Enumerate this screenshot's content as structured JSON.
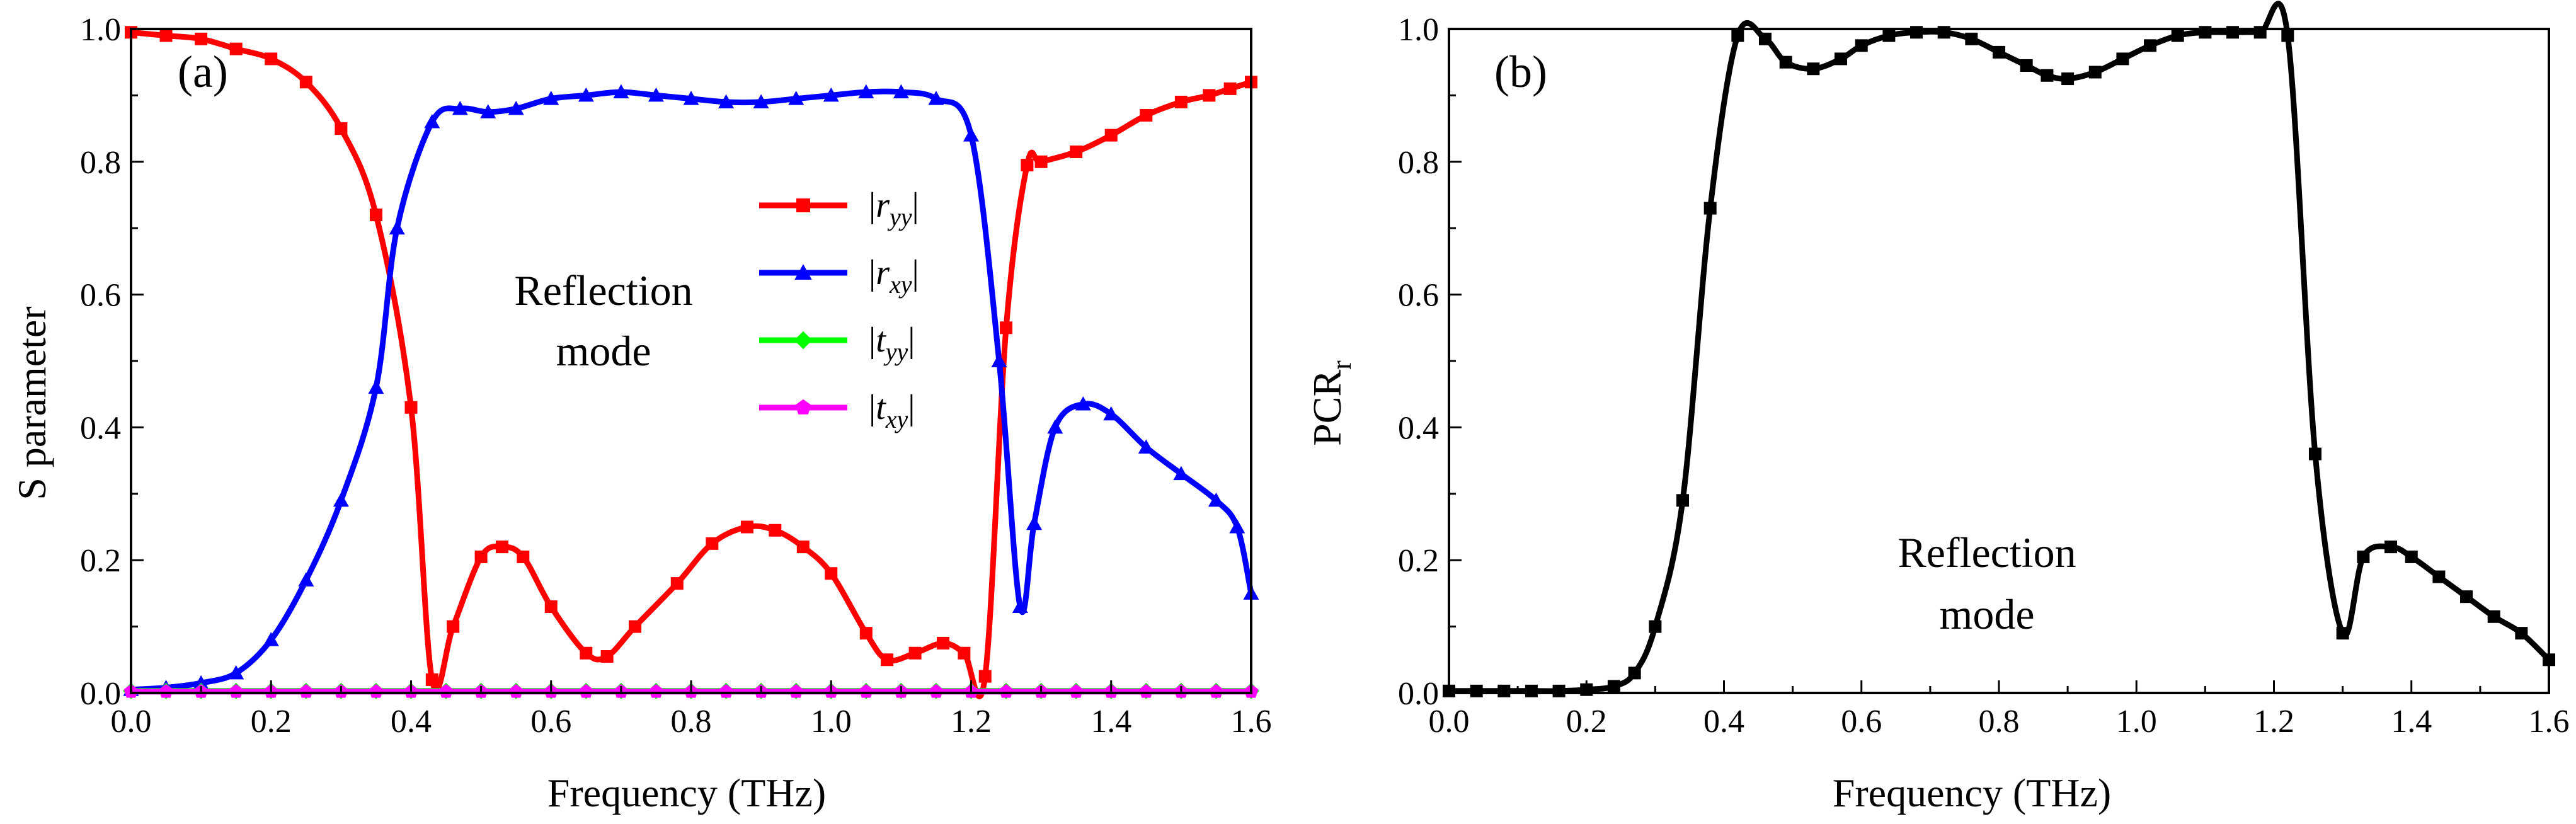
{
  "chart_data": [
    {
      "type": "line",
      "panel_label": "(a)",
      "xlabel": "Frequency (THz)",
      "ylabel": "S parameter",
      "xlim": [
        0.0,
        1.6
      ],
      "ylim": [
        0.0,
        1.0
      ],
      "x_ticks": [
        "0.0",
        "0.2",
        "0.4",
        "0.6",
        "0.8",
        "1.0",
        "1.2",
        "1.4",
        "1.6"
      ],
      "y_ticks": [
        "0.0",
        "0.2",
        "0.4",
        "0.6",
        "0.8",
        "1.0"
      ],
      "annotation": [
        "Reflection",
        "mode"
      ],
      "legend_position": "center-right",
      "series": [
        {
          "name": "|r_yy|",
          "label_main": "r",
          "label_sub": "yy",
          "color": "#ff0000",
          "marker": "square",
          "x": [
            0.0,
            0.05,
            0.1,
            0.15,
            0.2,
            0.25,
            0.3,
            0.35,
            0.4,
            0.43,
            0.46,
            0.5,
            0.53,
            0.56,
            0.6,
            0.65,
            0.68,
            0.72,
            0.78,
            0.83,
            0.88,
            0.92,
            0.96,
            1.0,
            1.05,
            1.08,
            1.12,
            1.16,
            1.19,
            1.22,
            1.25,
            1.28,
            1.3,
            1.35,
            1.4,
            1.45,
            1.5,
            1.54,
            1.57,
            1.6
          ],
          "y": [
            0.995,
            0.99,
            0.985,
            0.97,
            0.955,
            0.92,
            0.85,
            0.72,
            0.43,
            0.02,
            0.1,
            0.205,
            0.22,
            0.205,
            0.13,
            0.06,
            0.055,
            0.1,
            0.165,
            0.225,
            0.25,
            0.245,
            0.22,
            0.18,
            0.09,
            0.05,
            0.06,
            0.075,
            0.06,
            0.025,
            0.55,
            0.795,
            0.8,
            0.815,
            0.84,
            0.87,
            0.89,
            0.9,
            0.91,
            0.92
          ]
        },
        {
          "name": "|r_xy|",
          "label_main": "r",
          "label_sub": "xy",
          "color": "#0000ff",
          "marker": "triangle",
          "x": [
            0.0,
            0.05,
            0.1,
            0.15,
            0.2,
            0.25,
            0.3,
            0.35,
            0.38,
            0.43,
            0.47,
            0.51,
            0.55,
            0.6,
            0.65,
            0.7,
            0.75,
            0.8,
            0.85,
            0.9,
            0.95,
            1.0,
            1.05,
            1.1,
            1.15,
            1.2,
            1.24,
            1.27,
            1.29,
            1.32,
            1.36,
            1.4,
            1.45,
            1.5,
            1.55,
            1.58,
            1.6
          ],
          "y": [
            0.005,
            0.008,
            0.015,
            0.03,
            0.08,
            0.17,
            0.29,
            0.46,
            0.7,
            0.86,
            0.88,
            0.875,
            0.88,
            0.895,
            0.9,
            0.905,
            0.9,
            0.895,
            0.89,
            0.89,
            0.895,
            0.9,
            0.905,
            0.905,
            0.895,
            0.84,
            0.5,
            0.13,
            0.255,
            0.4,
            0.435,
            0.42,
            0.37,
            0.33,
            0.29,
            0.25,
            0.15
          ]
        },
        {
          "name": "|t_yy|",
          "label_main": "t",
          "label_sub": "yy",
          "color": "#00ff00",
          "marker": "diamond",
          "x": [
            0.0,
            0.05,
            0.1,
            0.15,
            0.2,
            0.25,
            0.3,
            0.35,
            0.4,
            0.45,
            0.5,
            0.55,
            0.6,
            0.65,
            0.7,
            0.75,
            0.8,
            0.85,
            0.9,
            0.95,
            1.0,
            1.05,
            1.1,
            1.15,
            1.2,
            1.25,
            1.3,
            1.35,
            1.4,
            1.45,
            1.5,
            1.55,
            1.6
          ],
          "y": [
            0.003,
            0.003,
            0.003,
            0.003,
            0.003,
            0.003,
            0.003,
            0.003,
            0.003,
            0.003,
            0.003,
            0.003,
            0.003,
            0.003,
            0.003,
            0.003,
            0.003,
            0.003,
            0.003,
            0.003,
            0.003,
            0.003,
            0.003,
            0.003,
            0.003,
            0.003,
            0.003,
            0.003,
            0.003,
            0.003,
            0.003,
            0.003,
            0.003
          ]
        },
        {
          "name": "|t_xy|",
          "label_main": "t",
          "label_sub": "xy",
          "color": "#ff00ff",
          "marker": "pentagon",
          "x": [
            0.0,
            0.05,
            0.1,
            0.15,
            0.2,
            0.25,
            0.3,
            0.35,
            0.4,
            0.45,
            0.5,
            0.55,
            0.6,
            0.65,
            0.7,
            0.75,
            0.8,
            0.85,
            0.9,
            0.95,
            1.0,
            1.05,
            1.1,
            1.15,
            1.2,
            1.25,
            1.3,
            1.35,
            1.4,
            1.45,
            1.5,
            1.55,
            1.6
          ],
          "y": [
            0.002,
            0.002,
            0.002,
            0.002,
            0.002,
            0.002,
            0.002,
            0.002,
            0.002,
            0.002,
            0.002,
            0.002,
            0.002,
            0.002,
            0.002,
            0.002,
            0.002,
            0.002,
            0.002,
            0.002,
            0.002,
            0.002,
            0.002,
            0.002,
            0.002,
            0.002,
            0.002,
            0.002,
            0.002,
            0.002,
            0.002,
            0.002,
            0.002
          ]
        }
      ]
    },
    {
      "type": "line",
      "panel_label": "(b)",
      "xlabel": "Frequency (THz)",
      "ylabel": "PCR",
      "ylabel_sub": "r",
      "xlim": [
        0.0,
        1.6
      ],
      "ylim": [
        0.0,
        1.0
      ],
      "x_ticks": [
        "0.0",
        "0.2",
        "0.4",
        "0.6",
        "0.8",
        "1.0",
        "1.2",
        "1.4",
        "1.6"
      ],
      "y_ticks": [
        "0.0",
        "0.2",
        "0.4",
        "0.6",
        "0.8",
        "1.0"
      ],
      "annotation": [
        "Reflection",
        "mode"
      ],
      "series": [
        {
          "name": "PCR_r",
          "color": "#000000",
          "marker": "square",
          "x": [
            0.0,
            0.04,
            0.08,
            0.12,
            0.16,
            0.2,
            0.24,
            0.27,
            0.3,
            0.34,
            0.38,
            0.42,
            0.46,
            0.49,
            0.53,
            0.57,
            0.6,
            0.64,
            0.68,
            0.72,
            0.76,
            0.8,
            0.84,
            0.87,
            0.9,
            0.94,
            0.98,
            1.02,
            1.06,
            1.1,
            1.14,
            1.18,
            1.22,
            1.26,
            1.3,
            1.33,
            1.37,
            1.4,
            1.44,
            1.48,
            1.52,
            1.56,
            1.6
          ],
          "y": [
            0.003,
            0.003,
            0.003,
            0.003,
            0.003,
            0.005,
            0.01,
            0.03,
            0.1,
            0.29,
            0.73,
            0.99,
            0.985,
            0.95,
            0.94,
            0.955,
            0.975,
            0.99,
            0.995,
            0.995,
            0.985,
            0.965,
            0.945,
            0.93,
            0.925,
            0.935,
            0.955,
            0.975,
            0.99,
            0.995,
            0.995,
            0.995,
            0.99,
            0.36,
            0.09,
            0.205,
            0.22,
            0.205,
            0.175,
            0.145,
            0.115,
            0.09,
            0.05
          ]
        }
      ]
    }
  ]
}
